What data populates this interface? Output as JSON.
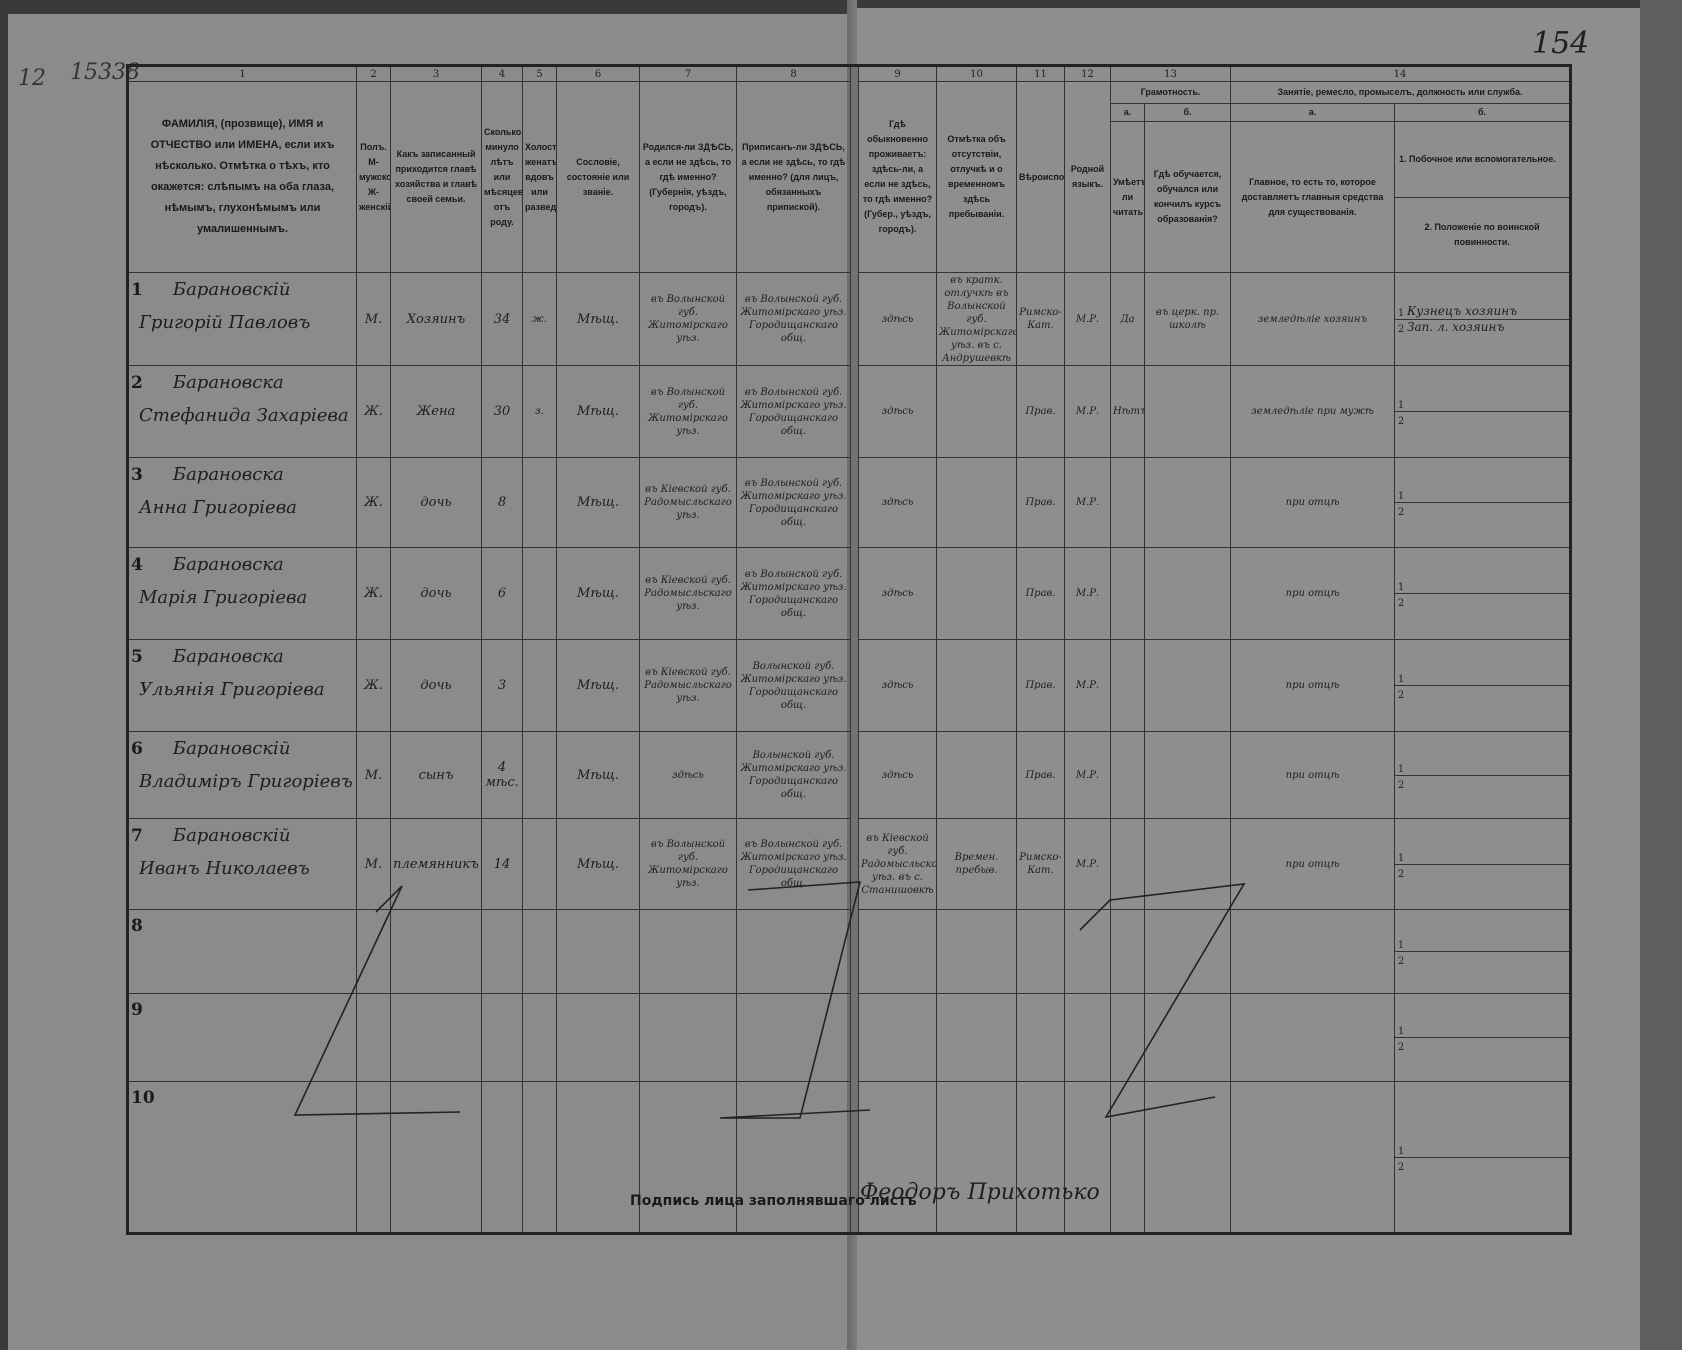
{
  "archive_marks": {
    "left_number": "12",
    "file_number": "15338",
    "page_number": "154"
  },
  "header": {
    "numbers": [
      "1",
      "2",
      "3",
      "4",
      "5",
      "6",
      "7",
      "8",
      "9",
      "10",
      "11",
      "12",
      "13",
      "14"
    ],
    "col1": "ФАМИЛІЯ, (прозвище), ИМЯ и ОТЧЕСТВО или ИМЕНА, если ихъ нѣсколько. Отмѣтка о тѣхъ, кто окажется: слѣпымъ на оба глаза, нѣмымъ, глухонѣмымъ или умалишеннымъ.",
    "col2": "Полъ. М-мужской. Ж-женскій.",
    "col3": "Какъ записанный приходится главѣ хозяйства и главѣ своей семьи.",
    "col4": "Сколько минуло лѣтъ или мѣсяцевъ отъ роду.",
    "col5": "Холостъ, женатъ, вдовъ или разведенъ.",
    "col6": "Сословіе, состояніе или званіе.",
    "col7": "Родился-ли ЗДѢСЬ, а если не здѣсь, то гдѣ именно? (Губернія, уѣздъ, городъ).",
    "col8": "Приписанъ-ли ЗДѢСЬ, а если не здѣсь, то гдѣ именно? (для лицъ, обязанныхъ припиской).",
    "col9": "Гдѣ обыкновенно проживаетъ: здѣсь-ли, а если не здѣсь, то гдѣ именно? (Губер., уѣздъ, городъ).",
    "col10": "Отмѣтка объ отсутствіи, отлучкѣ и о временномъ здѣсь пребываніи.",
    "col11": "Вѣроисповѣданіе.",
    "col12": "Родной языкъ.",
    "col13_title": "Грамотность.",
    "col13a_key": "а.",
    "col13a": "Умѣетъ-ли читать?",
    "col13b_key": "б.",
    "col13b": "Гдѣ обучается, обучался или кончилъ курсъ образованія?",
    "col14_title": "Занятіе, ремесло, промыселъ, должность или служба.",
    "col14a_key": "а.",
    "col14a": "Главное, то есть то, которое доставляетъ главныя средства для существованія.",
    "col14b_key": "б.",
    "col14b_1": "1. Побочное или вспомогательное.",
    "col14b_2": "2. Положеніе по воинской повинности."
  },
  "rows": [
    {
      "num": "1",
      "surname": "Барановскій",
      "name": "Григорій Павловъ",
      "sex": "М.",
      "relation": "Хозяинъ",
      "age": "34",
      "marital": "ж.",
      "estate": "Мѣщ.",
      "birthplace": "въ Волынской губ. Житомірскаго уѣз.",
      "registered": "въ Волынской губ. Житомірскаго уѣз. Городищанскаго общ.",
      "residence": "здѣсь",
      "absence": "въ кратк. отлучкѣ въ Волынской губ. Житомірскаго уѣз. въ с. Андрушевкѣ",
      "religion": "Римско-Кат.",
      "language": "М.Р.",
      "literate": "Да",
      "education": "въ церк. пр. школѣ",
      "occupation": "земледѣліе хозяинъ",
      "sub1": "Кузнецъ хозяинъ",
      "sub2": "Зап. л. хозяинъ"
    },
    {
      "num": "2",
      "surname": "Барановска",
      "name": "Стефанида Захаріева",
      "sex": "Ж.",
      "relation": "Жена",
      "age": "30",
      "marital": "з.",
      "estate": "Мѣщ.",
      "birthplace": "въ Волынской губ. Житомірскаго уѣз.",
      "registered": "въ Волынской губ. Житомірскаго уѣз. Городищанскаго общ.",
      "residence": "здѣсь",
      "absence": "",
      "religion": "Прав.",
      "language": "М.Р.",
      "literate": "Нѣтъ",
      "education": "",
      "occupation": "земледѣліе при мужѣ",
      "sub1": "",
      "sub2": ""
    },
    {
      "num": "3",
      "surname": "Барановска",
      "name": "Анна Григоріева",
      "sex": "Ж.",
      "relation": "дочь",
      "age": "8",
      "marital": "",
      "estate": "Мѣщ.",
      "birthplace": "въ Кіевской губ. Радомысльскаго уѣз.",
      "registered": "въ Волынской губ. Житомірскаго уѣз. Городищанскаго общ.",
      "residence": "здѣсь",
      "absence": "",
      "religion": "Прав.",
      "language": "М.Р.",
      "literate": "",
      "education": "",
      "occupation": "при отцѣ",
      "sub1": "",
      "sub2": ""
    },
    {
      "num": "4",
      "surname": "Барановска",
      "name": "Марія Григоріева",
      "sex": "Ж.",
      "relation": "дочь",
      "age": "6",
      "marital": "",
      "estate": "Мѣщ.",
      "birthplace": "въ Кіевской губ. Радомысльскаго уѣз.",
      "registered": "въ Волынской губ. Житомірскаго уѣз. Городищанскаго общ.",
      "residence": "здѣсь",
      "absence": "",
      "religion": "Прав.",
      "language": "М.Р.",
      "literate": "",
      "education": "",
      "occupation": "при отцѣ",
      "sub1": "",
      "sub2": ""
    },
    {
      "num": "5",
      "surname": "Барановска",
      "name": "Ульянія Григоріева",
      "sex": "Ж.",
      "relation": "дочь",
      "age": "3",
      "marital": "",
      "estate": "Мѣщ.",
      "birthplace": "въ Кіевской губ. Радомысльскаго уѣз.",
      "registered": "Волынской губ. Житомірскаго уѣз. Городищанскаго общ.",
      "residence": "здѣсь",
      "absence": "",
      "religion": "Прав.",
      "language": "М.Р.",
      "literate": "",
      "education": "",
      "occupation": "при отцѣ",
      "sub1": "",
      "sub2": ""
    },
    {
      "num": "6",
      "surname": "Барановскій",
      "name": "Владиміръ Григоріевъ",
      "sex": "М.",
      "relation": "сынъ",
      "age": "4 мѣс.",
      "marital": "",
      "estate": "Мѣщ.",
      "birthplace": "здѣсь",
      "registered": "Волынской губ. Житомірскаго уѣз. Городищанскаго общ.",
      "residence": "здѣсь",
      "absence": "",
      "religion": "Прав.",
      "language": "М.Р.",
      "literate": "",
      "education": "",
      "occupation": "при отцѣ",
      "sub1": "",
      "sub2": ""
    },
    {
      "num": "7",
      "surname": "Барановскій",
      "name": "Иванъ Николаевъ",
      "sex": "М.",
      "relation": "племянникъ",
      "age": "14",
      "marital": "",
      "estate": "Мѣщ.",
      "birthplace": "въ Волынской губ. Житомірскаго уѣз.",
      "registered": "въ Волынской губ. Житомірскаго уѣз. Городищанскаго общ.",
      "residence": "въ Кіевской губ. Радомысльскомъ уѣз. въ с. Станишовкѣ",
      "absence": "Времен. пребыв.",
      "religion": "Римско-Кат.",
      "language": "М.Р.",
      "literate": "",
      "education": "",
      "occupation": "при отцѣ",
      "sub1": "",
      "sub2": ""
    },
    {
      "num": "8",
      "surname": "",
      "name": "",
      "sex": "",
      "relation": "",
      "age": "",
      "marital": "",
      "estate": "",
      "birthplace": "",
      "registered": "",
      "residence": "",
      "absence": "",
      "religion": "",
      "language": "",
      "literate": "",
      "education": "",
      "occupation": "",
      "sub1": "",
      "sub2": ""
    },
    {
      "num": "9",
      "surname": "",
      "name": "",
      "sex": "",
      "relation": "",
      "age": "",
      "marital": "",
      "estate": "",
      "birthplace": "",
      "registered": "",
      "residence": "",
      "absence": "",
      "religion": "",
      "language": "",
      "literate": "",
      "education": "",
      "occupation": "",
      "sub1": "",
      "sub2": ""
    },
    {
      "num": "10",
      "surname": "",
      "name": "",
      "sex": "",
      "relation": "",
      "age": "",
      "marital": "",
      "estate": "",
      "birthplace": "",
      "registered": "",
      "residence": "",
      "absence": "",
      "religion": "",
      "language": "",
      "literate": "",
      "education": "",
      "occupation": "",
      "sub1": "",
      "sub2": ""
    }
  ],
  "footer": {
    "signature_label": "Подпись лица заполнявшаго листъ",
    "signature": "Феодоръ Прихотько"
  }
}
